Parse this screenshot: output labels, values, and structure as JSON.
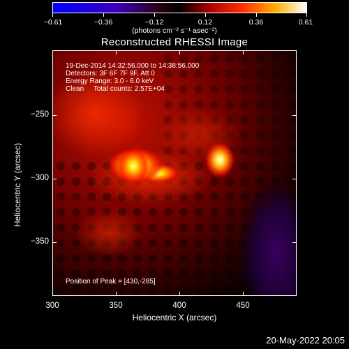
{
  "colorbar": {
    "ticks": [
      "−0.61",
      "−0.36",
      "−0.12",
      "0.12",
      "0.36",
      "0.61"
    ],
    "unit": "(photons cm⁻² s⁻¹ asec⁻²)"
  },
  "title": "Reconstructed RHESSI Image",
  "info": {
    "line1": "19-Dec-2014 14:32:56.000 to 14:38:56.000",
    "line2": "Detectors: 3F 6F 7F 9F, Att 0",
    "line3": "Energy Range: 3.0 - 6.0 keV",
    "line4": "Clean     Total counts: 2.57E+04",
    "peak": "Position of Peak = [430,-285]"
  },
  "axes": {
    "xlabel": "Heliocentric X (arcsec)",
    "ylabel": "Heliocentric Y (arcsec)",
    "xticks": [
      "300",
      "350",
      "400",
      "450"
    ],
    "yticks": [
      "−250",
      "−300",
      "−350"
    ]
  },
  "footer": "20-May-2022 20:05",
  "colors": {
    "background": "#000000",
    "text": "#ffffff"
  }
}
